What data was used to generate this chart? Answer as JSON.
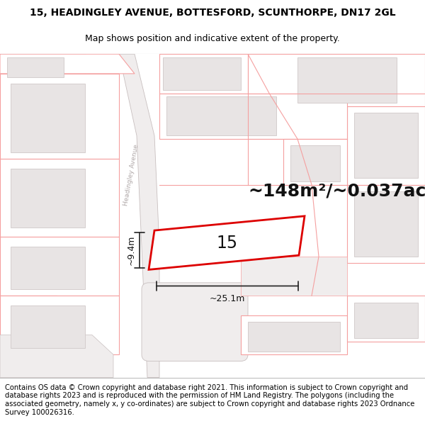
{
  "title_line1": "15, HEADINGLEY AVENUE, BOTTESFORD, SCUNTHORPE, DN17 2GL",
  "title_line2": "Map shows position and indicative extent of the property.",
  "footer_text": "Contains OS data © Crown copyright and database right 2021. This information is subject to Crown copyright and database rights 2023 and is reproduced with the permission of HM Land Registry. The polygons (including the associated geometry, namely x, y co-ordinates) are subject to Crown copyright and database rights 2023 Ordnance Survey 100026316.",
  "area_label": "~148m²/~0.037ac.",
  "number_label": "15",
  "width_label": "~25.1m",
  "height_label": "~9.4m",
  "road_label": "Headingley Avenue",
  "map_bg": "#ffffff",
  "plot_outline_color": "#dd0000",
  "road_strip_color": "#e8e0e0",
  "road_strip_edge": "#ccbfbf",
  "plot_line_color": "#f5a0a0",
  "building_fc": "#e8e4e4",
  "building_ec": "#d0c8c8",
  "dim_line_color": "#222222",
  "road_label_color": "#aaaaaa",
  "title_fontsize": 10,
  "subtitle_fontsize": 9,
  "footer_fontsize": 7.2,
  "area_fontsize": 18,
  "number_fontsize": 17
}
